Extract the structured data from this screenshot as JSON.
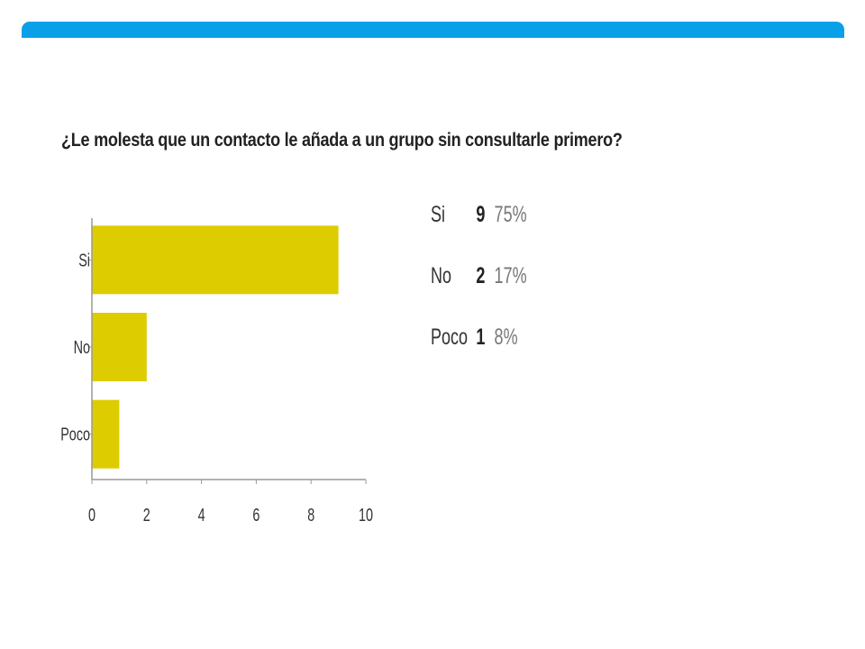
{
  "header": {
    "bar_color": "#0aa0e8"
  },
  "chart_data": {
    "type": "bar",
    "orientation": "horizontal",
    "title": "¿Le molesta que un contacto le añada a un grupo sin consultarle primero?",
    "categories": [
      "Si",
      "No",
      "Poco"
    ],
    "values": [
      9,
      2,
      1
    ],
    "xlim": [
      0,
      10
    ],
    "xticks": [
      0,
      2,
      4,
      6,
      8,
      10
    ],
    "bar_color": "#ddcc00",
    "grid": false,
    "legend_position": "right",
    "legend": [
      {
        "label": "Si",
        "count": "9",
        "percent": "75%"
      },
      {
        "label": "No",
        "count": "2",
        "percent": "17%"
      },
      {
        "label": "Poco",
        "count": "1",
        "percent": "8%"
      }
    ]
  }
}
